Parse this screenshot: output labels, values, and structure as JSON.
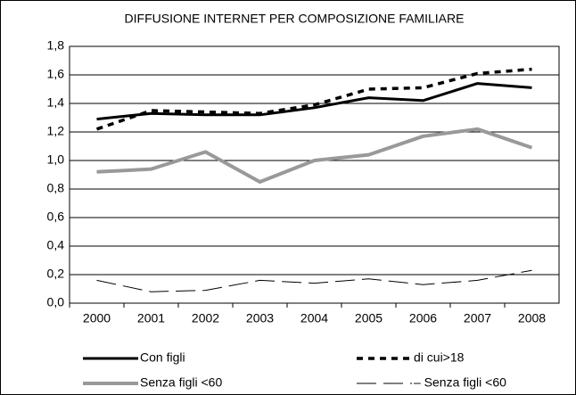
{
  "chart_data": {
    "type": "line",
    "title": "DIFFUSIONE INTERNET PER COMPOSIZIONE FAMILIARE",
    "categories": [
      "2000",
      "2001",
      "2002",
      "2003",
      "2004",
      "2005",
      "2006",
      "2007",
      "2008"
    ],
    "series": [
      {
        "name": "Con figli",
        "color": "#000000",
        "values": [
          1.29,
          1.33,
          1.32,
          1.32,
          1.37,
          1.44,
          1.42,
          1.54,
          1.51
        ]
      },
      {
        "name": "di cui>18",
        "color": "#000000",
        "values": [
          1.22,
          1.35,
          1.34,
          1.33,
          1.39,
          1.5,
          1.51,
          1.61,
          1.64
        ]
      },
      {
        "name": "Senza figli <60",
        "color": "#999999",
        "values": [
          0.92,
          0.94,
          1.06,
          0.85,
          1.0,
          1.04,
          1.17,
          1.22,
          1.09
        ]
      },
      {
        "name": "– Senza figli <60",
        "color": "#000000",
        "values": [
          0.16,
          0.08,
          0.09,
          0.16,
          0.14,
          0.17,
          0.13,
          0.16,
          0.23
        ]
      }
    ],
    "ylim": [
      0,
      1.8
    ],
    "yticks": [
      {
        "value": 0,
        "label": "0,0"
      },
      {
        "value": 0.2,
        "label": "0,2"
      },
      {
        "value": 0.4,
        "label": "0,4"
      },
      {
        "value": 0.6,
        "label": "0,6"
      },
      {
        "value": 0.8,
        "label": "0,8"
      },
      {
        "value": 1.0,
        "label": "1,0"
      },
      {
        "value": 1.2,
        "label": "1,2"
      },
      {
        "value": 1.4,
        "label": "1,4"
      },
      {
        "value": 1.6,
        "label": "1,6"
      },
      {
        "value": 1.8,
        "label": "1,8"
      }
    ],
    "grid": true
  }
}
